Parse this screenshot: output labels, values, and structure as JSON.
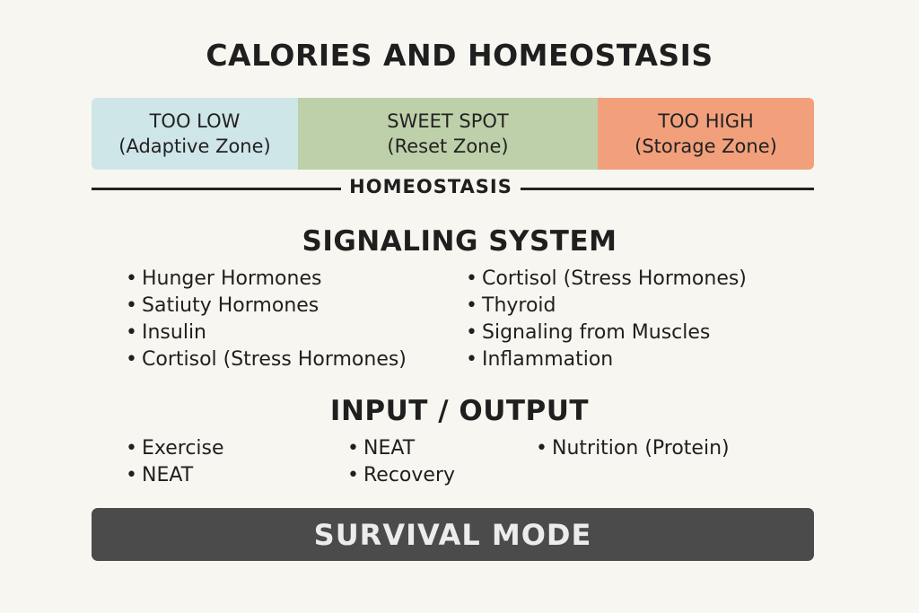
{
  "title": "CALORIES AND HOMEOSTASIS",
  "zones": [
    {
      "heading": "TOO LOW",
      "sub": "(Adaptive Zone)",
      "color": "#cfe6e8"
    },
    {
      "heading": "SWEET SPOT",
      "sub": "(Reset Zone)",
      "color": "#bed0aa"
    },
    {
      "heading": "TOO HIGH",
      "sub": "(Storage Zone)",
      "color": "#f2a07c"
    }
  ],
  "homeostasis_label": "HOMEOSTASIS",
  "signaling": {
    "title": "SIGNALING SYSTEM",
    "left": [
      "Hunger Hormones",
      "Satiuty Hormones",
      "Insulin",
      "Cortisol (Stress Hormones)"
    ],
    "right": [
      "Cortisol (Stress Hormones)",
      "Thyroid",
      "Signaling from Muscles",
      "Inflammation"
    ]
  },
  "input_output": {
    "title": "INPUT / OUTPUT",
    "col1": [
      "Exercise",
      "NEAT"
    ],
    "col2": [
      "NEAT",
      "Recovery"
    ],
    "col3": [
      "Nutrition (Protein)"
    ]
  },
  "footer_label": "SURVIVAL MODE",
  "colors": {
    "background": "#f8f6f0",
    "footer_bar": "#4b4b4b"
  }
}
